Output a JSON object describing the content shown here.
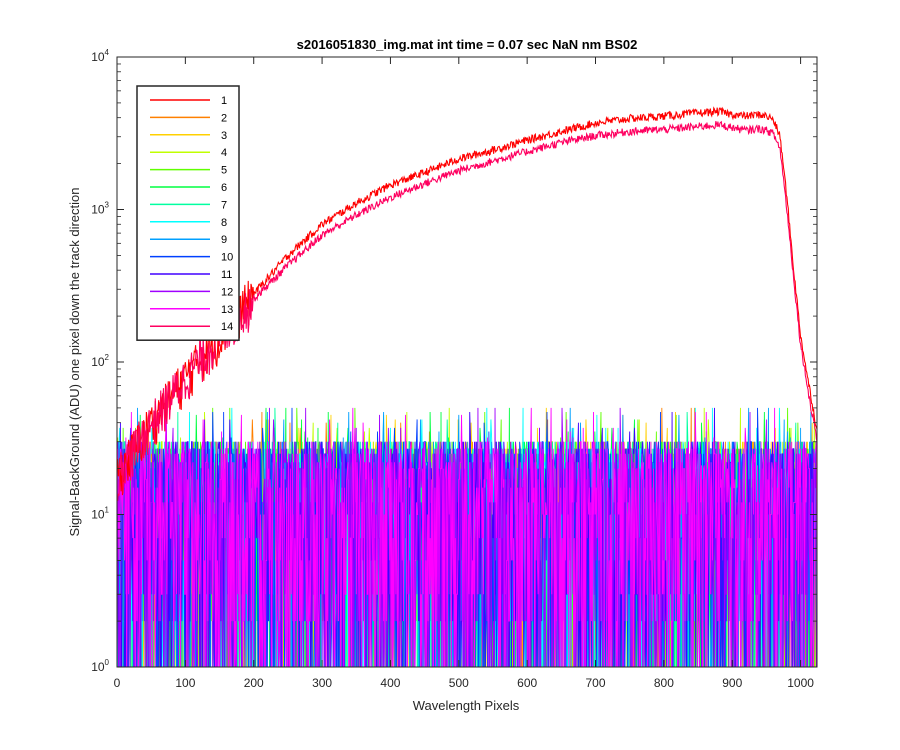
{
  "chart_data": {
    "type": "line",
    "title": "s2016051830_img.mat int time = 0.07 sec  NaN nm BS02",
    "xlabel": "Wavelength Pixels",
    "ylabel": "Signal-BackGround (ADU) one pixel down the track direction",
    "xlim": [
      0,
      1024
    ],
    "ylim": [
      1,
      10000
    ],
    "yscale": "log",
    "grid": false,
    "legend_position": "top-left",
    "x_ticks": [
      "0",
      "100",
      "200",
      "300",
      "400",
      "500",
      "600",
      "700",
      "800",
      "900",
      "1000"
    ],
    "y_ticks": [
      {
        "base": "10",
        "exp": "0"
      },
      {
        "base": "10",
        "exp": "1"
      },
      {
        "base": "10",
        "exp": "2"
      },
      {
        "base": "10",
        "exp": "3"
      },
      {
        "base": "10",
        "exp": "4"
      }
    ],
    "series_profile_x": [
      0,
      20,
      50,
      100,
      150,
      200,
      250,
      300,
      350,
      400,
      450,
      500,
      550,
      600,
      650,
      700,
      750,
      800,
      850,
      880,
      900,
      920,
      940,
      950,
      960,
      970,
      980,
      990,
      1000,
      1010,
      1015,
      1020,
      1024
    ],
    "series": [
      {
        "name": "1",
        "color": "#ff0000",
        "kind": "signal",
        "y": [
          18,
          25,
          40,
          80,
          150,
          280,
          500,
          800,
          1100,
          1450,
          1750,
          2150,
          2450,
          2850,
          3250,
          3700,
          3950,
          4100,
          4300,
          4400,
          4200,
          4100,
          4200,
          4100,
          3900,
          3000,
          1200,
          400,
          150,
          80,
          60,
          45,
          35
        ]
      },
      {
        "name": "2",
        "color": "#ff8000",
        "kind": "noise",
        "values_summary": "noise 1–50 ADU"
      },
      {
        "name": "3",
        "color": "#ffd000",
        "kind": "noise",
        "values_summary": "noise 1–50 ADU"
      },
      {
        "name": "4",
        "color": "#c0ff00",
        "kind": "noise",
        "values_summary": "noise 1–50 ADU"
      },
      {
        "name": "5",
        "color": "#60ff00",
        "kind": "noise",
        "values_summary": "noise 1–50 ADU"
      },
      {
        "name": "6",
        "color": "#00ff40",
        "kind": "noise",
        "values_summary": "noise 1–50 ADU"
      },
      {
        "name": "7",
        "color": "#00ffa0",
        "kind": "noise",
        "values_summary": "noise 1–50 ADU"
      },
      {
        "name": "8",
        "color": "#00ffff",
        "kind": "noise",
        "values_summary": "noise 1–50 ADU"
      },
      {
        "name": "9",
        "color": "#00a0ff",
        "kind": "noise",
        "values_summary": "noise 1–50 ADU"
      },
      {
        "name": "10",
        "color": "#0040ff",
        "kind": "noise",
        "values_summary": "noise 1–50 ADU"
      },
      {
        "name": "11",
        "color": "#4000ff",
        "kind": "noise",
        "values_summary": "noise 1–50 ADU"
      },
      {
        "name": "12",
        "color": "#a000ff",
        "kind": "noise",
        "values_summary": "noise 1–50 ADU"
      },
      {
        "name": "13",
        "color": "#ff00ff",
        "kind": "noise",
        "values_summary": "noise 1–50 ADU"
      },
      {
        "name": "14",
        "color": "#ff0060",
        "kind": "signal",
        "y": [
          18,
          25,
          40,
          80,
          150,
          260,
          430,
          680,
          920,
          1200,
          1480,
          1800,
          2080,
          2400,
          2750,
          3050,
          3250,
          3350,
          3500,
          3600,
          3450,
          3300,
          3400,
          3300,
          3150,
          2500,
          1000,
          350,
          130,
          70,
          50,
          40,
          30
        ]
      }
    ]
  }
}
